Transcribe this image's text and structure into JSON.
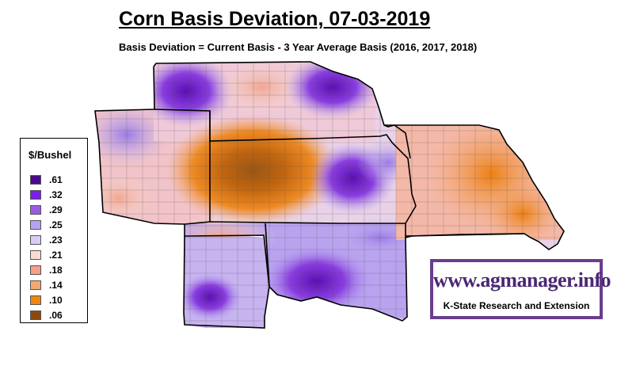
{
  "title": "Corn Basis Deviation, 07-03-2019",
  "subtitle": "Basis Deviation = Current Basis - 3 Year Average Basis (2016, 2017, 2018)",
  "legend": {
    "title": "$/Bushel",
    "items": [
      {
        "label": ".61",
        "color": "#4b0a8c"
      },
      {
        "label": ".32",
        "color": "#7a1fe8"
      },
      {
        "label": ".29",
        "color": "#9b5ae6"
      },
      {
        "label": ".25",
        "color": "#b6a2f2"
      },
      {
        "label": ".23",
        "color": "#d9ccf2"
      },
      {
        "label": ".21",
        "color": "#f7dcd2"
      },
      {
        "label": ".18",
        "color": "#f59e8a"
      },
      {
        "label": ".14",
        "color": "#f4a870"
      },
      {
        "label": ".10",
        "color": "#f08510"
      },
      {
        "label": ".06",
        "color": "#8a4a0f"
      }
    ]
  },
  "branding": {
    "url": "www.agmanager.info",
    "org": "K-State Research and Extension"
  }
}
